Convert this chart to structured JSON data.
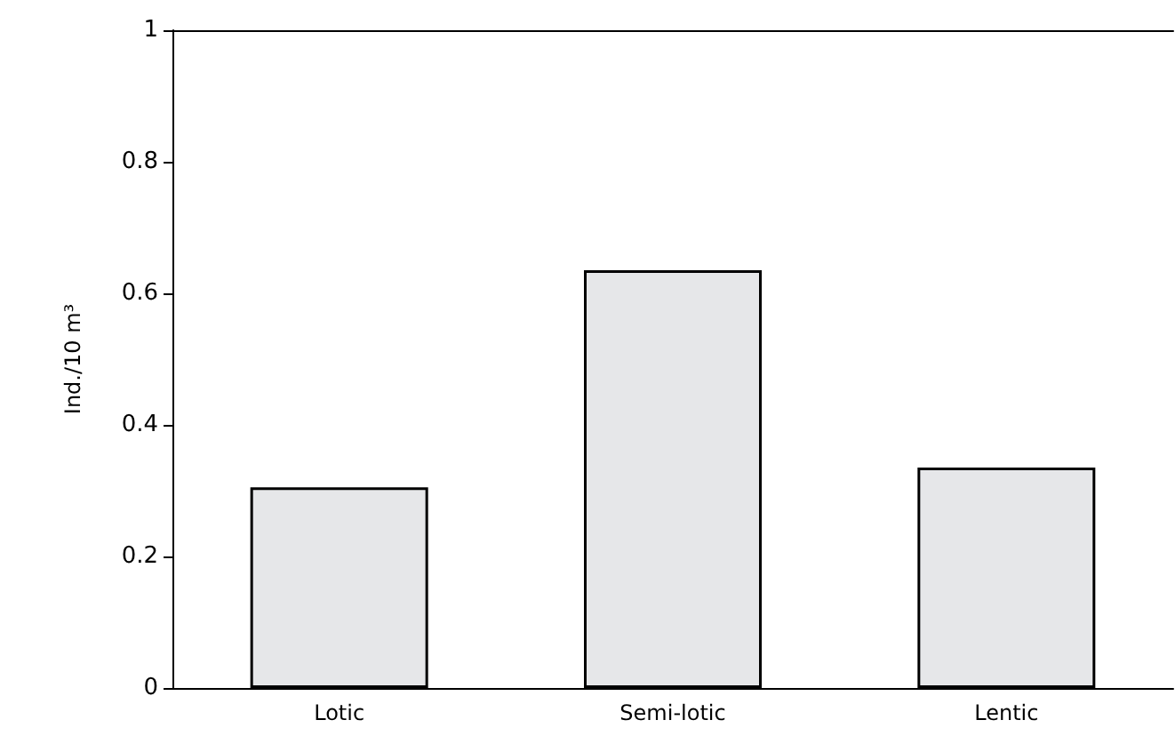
{
  "chart_data": {
    "type": "bar",
    "ylabel": "Ind./10 m³",
    "categories": [
      "Lotic",
      "Semi-lotic",
      "Lentic"
    ],
    "values": [
      0.305,
      0.635,
      0.335
    ],
    "color": "#e6e7e9",
    "ylim": [
      0,
      1
    ],
    "yticks": [
      0,
      0.2,
      0.4,
      0.6,
      0.8,
      1
    ],
    "grid": false
  }
}
